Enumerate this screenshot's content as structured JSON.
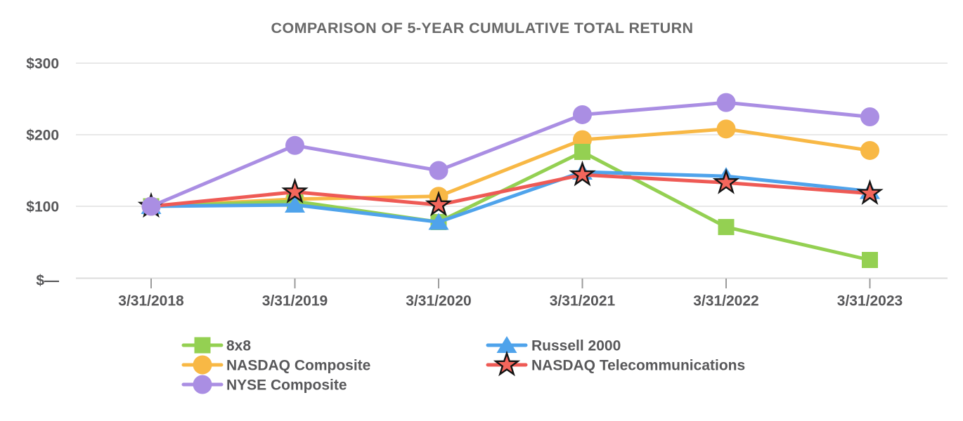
{
  "chart_data": {
    "type": "line",
    "title": "COMPARISON OF 5-YEAR CUMULATIVE TOTAL RETURN",
    "x": [
      "3/31/2018",
      "3/31/2019",
      "3/31/2020",
      "3/31/2021",
      "3/31/2022",
      "3/31/2023"
    ],
    "y_ticks": [
      {
        "label": "$—",
        "value": 0
      },
      {
        "label": "$100",
        "value": 100
      },
      {
        "label": "$200",
        "value": 200
      },
      {
        "label": "$300",
        "value": 300
      }
    ],
    "ylim": [
      0,
      300
    ],
    "grid": "horizontal-light",
    "legend_position": "bottom-two-columns",
    "series": [
      {
        "name": "8x8",
        "marker": "square",
        "color": "#94D052",
        "values": [
          100,
          107,
          78,
          176,
          71,
          25
        ]
      },
      {
        "name": "NASDAQ Composite",
        "marker": "circle",
        "color": "#F8B845",
        "values": [
          100,
          110,
          114,
          193,
          208,
          178
        ]
      },
      {
        "name": "NYSE Composite",
        "marker": "circle",
        "color": "#AA8EE3",
        "values": [
          100,
          185,
          150,
          228,
          245,
          225
        ]
      },
      {
        "name": "Russell 2000",
        "marker": "triangle",
        "color": "#4FA3EB",
        "values": [
          100,
          102,
          78,
          148,
          142,
          121
        ]
      },
      {
        "name": "NASDAQ Telecommunications",
        "marker": "star",
        "color": "#EE5A55",
        "marker_fill": "#F3665C",
        "marker_outline": "#141414",
        "values": [
          100,
          120,
          102,
          144,
          133,
          118
        ]
      }
    ],
    "draw_order": [
      1,
      0,
      3,
      4,
      2
    ],
    "legend_columns": [
      [
        0,
        1,
        2
      ],
      [
        3,
        4
      ]
    ]
  },
  "style": {
    "title_color": "#696969",
    "text_color": "#58585A",
    "grid_color": "#E8E8E8",
    "axis_line_color": "#DCDCDC",
    "tick_color": "#9B9B9B",
    "background": "#FFFFFF"
  }
}
